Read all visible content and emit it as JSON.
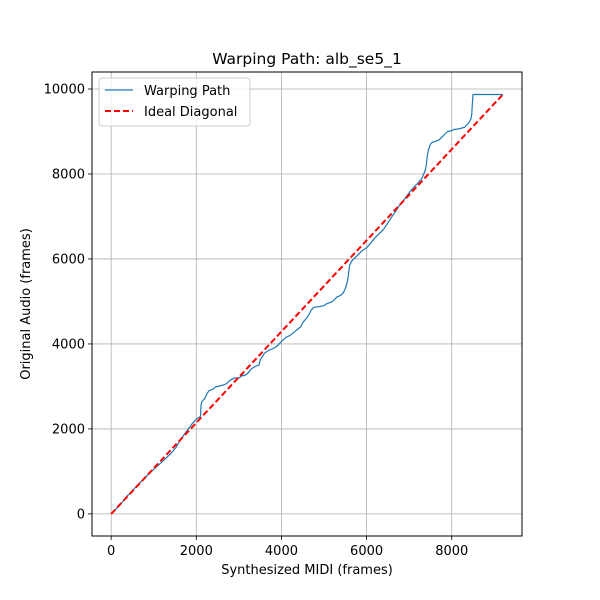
{
  "chart_data": {
    "type": "line",
    "title": "Warping Path: alb_se5_1",
    "xlabel": "Synthesized MIDI (frames)",
    "ylabel": "Original Audio (frames)",
    "xlim": [
      -450,
      9650
    ],
    "ylim": [
      -520,
      10400
    ],
    "xticks": [
      0,
      2000,
      4000,
      6000,
      8000
    ],
    "yticks": [
      0,
      2000,
      4000,
      6000,
      8000,
      10000
    ],
    "xtick_labels": [
      "0",
      "2000",
      "4000",
      "6000",
      "8000"
    ],
    "ytick_labels": [
      "0",
      "2000",
      "4000",
      "6000",
      "8000",
      "10000"
    ],
    "grid": true,
    "legend_position": "top-left",
    "series": [
      {
        "name": "Warping Path",
        "color": "#1f77b4",
        "style": "solid",
        "x": [
          0,
          200,
          330,
          380,
          430,
          480,
          530,
          620,
          800,
          1000,
          1200,
          1400,
          1520,
          1600,
          1700,
          1800,
          1900,
          2000,
          2080,
          2100,
          2110,
          2130,
          2200,
          2250,
          2300,
          2400,
          2450,
          2550,
          2650,
          2700,
          2800,
          2900,
          3000,
          3050,
          3100,
          3120,
          3200,
          3300,
          3350,
          3400,
          3470,
          3500,
          3550,
          3600,
          3700,
          3800,
          3900,
          4000,
          4100,
          4200,
          4300,
          4350,
          4400,
          4450,
          4500,
          4550,
          4600,
          4650,
          4700,
          4750,
          4800,
          4900,
          5000,
          5050,
          5100,
          5200,
          5300,
          5400,
          5450,
          5500,
          5550,
          5570,
          5600,
          5650,
          5700,
          5800,
          5900,
          6000,
          6100,
          6200,
          6300,
          6400,
          6500,
          6600,
          6700,
          6800,
          6900,
          7000,
          7050,
          7100,
          7200,
          7300,
          7350,
          7380,
          7400,
          7420,
          7450,
          7500,
          7550,
          7600,
          7650,
          7700,
          7750,
          7800,
          7900,
          8000,
          8050,
          8100,
          8200,
          8300,
          8400,
          8450,
          8470,
          8480,
          8500,
          8600,
          8700,
          8800,
          8900,
          9000,
          9100,
          9200
        ],
        "y": [
          0,
          200,
          360,
          430,
          470,
          520,
          580,
          680,
          860,
          1050,
          1230,
          1420,
          1560,
          1700,
          1850,
          1980,
          2120,
          2230,
          2280,
          2300,
          2560,
          2640,
          2720,
          2830,
          2900,
          2940,
          2990,
          3010,
          3040,
          3060,
          3150,
          3200,
          3200,
          3230,
          3270,
          3250,
          3300,
          3420,
          3450,
          3480,
          3500,
          3620,
          3700,
          3780,
          3850,
          3890,
          3950,
          4060,
          4150,
          4200,
          4280,
          4320,
          4360,
          4400,
          4500,
          4560,
          4620,
          4700,
          4800,
          4850,
          4870,
          4880,
          4900,
          4940,
          4960,
          5000,
          5100,
          5150,
          5200,
          5300,
          5480,
          5600,
          5850,
          5950,
          6000,
          6100,
          6200,
          6260,
          6380,
          6500,
          6600,
          6700,
          6850,
          7000,
          7150,
          7300,
          7420,
          7560,
          7620,
          7680,
          7780,
          7900,
          8020,
          8100,
          8200,
          8380,
          8560,
          8700,
          8750,
          8760,
          8780,
          8800,
          8850,
          8900,
          9000,
          9020,
          9050,
          9050,
          9070,
          9100,
          9200,
          9300,
          9400,
          9600,
          9870,
          9870,
          9870,
          9870,
          9870,
          9870,
          9870,
          9870
        ]
      },
      {
        "name": "Ideal Diagonal",
        "color": "#ff0000",
        "style": "dashed",
        "x": [
          0,
          9200
        ],
        "y": [
          0,
          9870
        ]
      }
    ]
  }
}
